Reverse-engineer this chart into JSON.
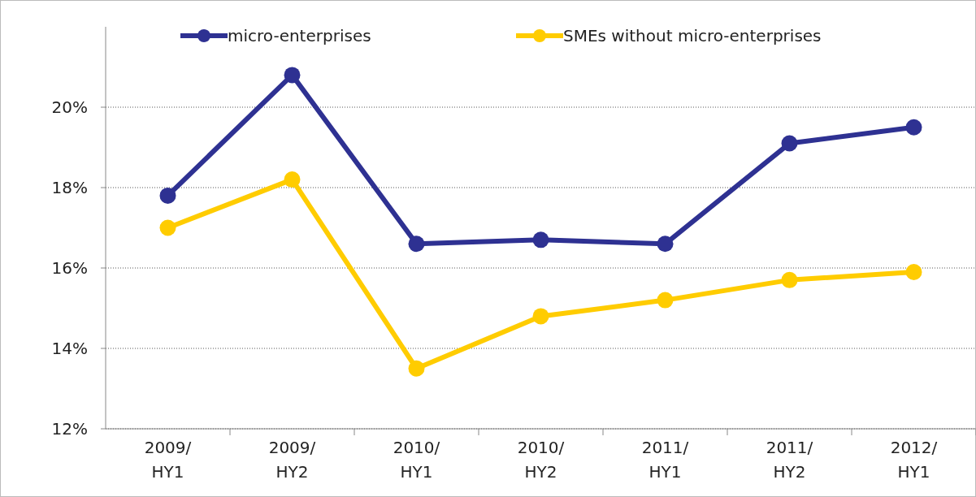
{
  "chart_data": {
    "type": "line",
    "categories": [
      "2009/\nHY1",
      "2009/\nHY2",
      "2010/\nHY1",
      "2010/\nHY2",
      "2011/\nHY1",
      "2011/\nHY2",
      "2012/\nHY1"
    ],
    "series": [
      {
        "name": "micro-enterprises",
        "color": "#2e3192",
        "values": [
          17.8,
          20.8,
          16.6,
          16.7,
          16.6,
          19.1,
          19.5
        ]
      },
      {
        "name": "SMEs without micro-enterprises",
        "color": "#ffcc00",
        "values": [
          17.0,
          18.2,
          13.5,
          14.8,
          15.2,
          15.7,
          15.9
        ]
      }
    ],
    "ylim": [
      12,
      22
    ],
    "yticks": [
      {
        "value": 12,
        "label": "12%"
      },
      {
        "value": 14,
        "label": "14%"
      },
      {
        "value": 16,
        "label": "16%"
      },
      {
        "value": 18,
        "label": "18%"
      },
      {
        "value": 20,
        "label": "20%"
      }
    ],
    "grid": "y",
    "legend": "top",
    "marker": "circle",
    "line_style": "solid"
  }
}
